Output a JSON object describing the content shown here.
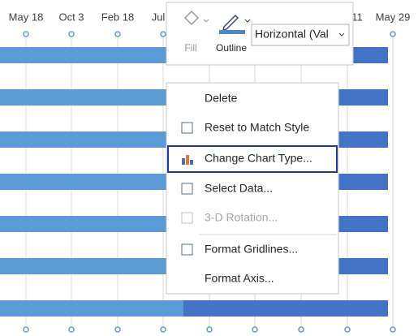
{
  "axis_labels": [
    "May 18",
    "Oct 3",
    "Feb 18",
    "Jul",
    "11",
    "May 29"
  ],
  "toolbar": {
    "fill_label": "Fill",
    "outline_label": "Outline",
    "dropdown_text": "Horizontal (Val"
  },
  "menu": {
    "items": [
      {
        "label": "Delete",
        "enabled": true
      },
      {
        "label": "Reset to Match Style",
        "enabled": true
      },
      {
        "label": "Change Chart Type...",
        "enabled": true,
        "highlighted": true
      },
      {
        "label": "Select Data...",
        "enabled": true
      },
      {
        "label": "3-D Rotation...",
        "enabled": false
      },
      {
        "label": "Format Gridlines...",
        "enabled": true
      },
      {
        "label": "Format Axis...",
        "enabled": true
      }
    ]
  }
}
